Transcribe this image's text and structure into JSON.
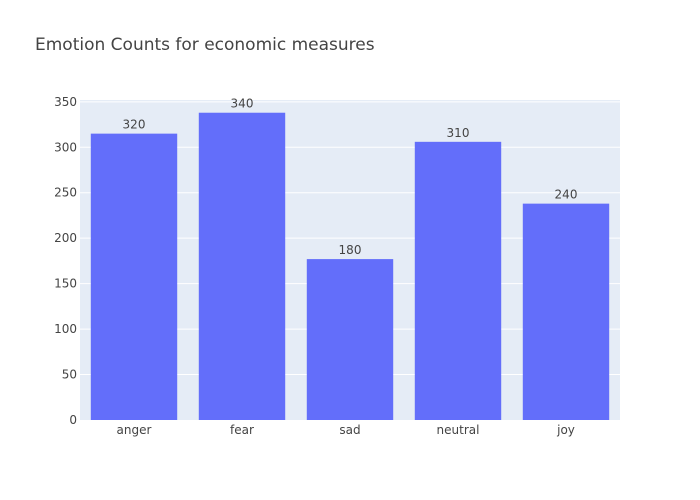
{
  "chart_data": {
    "type": "bar",
    "title": "Emotion Counts for economic measures",
    "xlabel": "",
    "ylabel": "",
    "categories": [
      "anger",
      "fear",
      "sad",
      "neutral",
      "joy"
    ],
    "values": [
      315,
      338,
      177,
      306,
      238
    ],
    "data_labels": [
      "320",
      "340",
      "180",
      "310",
      "240"
    ],
    "ylim": [
      0,
      352
    ],
    "yticks": [
      0,
      50,
      100,
      150,
      200,
      250,
      300,
      350
    ],
    "grid": true,
    "legend": "none",
    "bar_color": "#636efa",
    "plot_bgcolor": "#e5ecf6"
  }
}
